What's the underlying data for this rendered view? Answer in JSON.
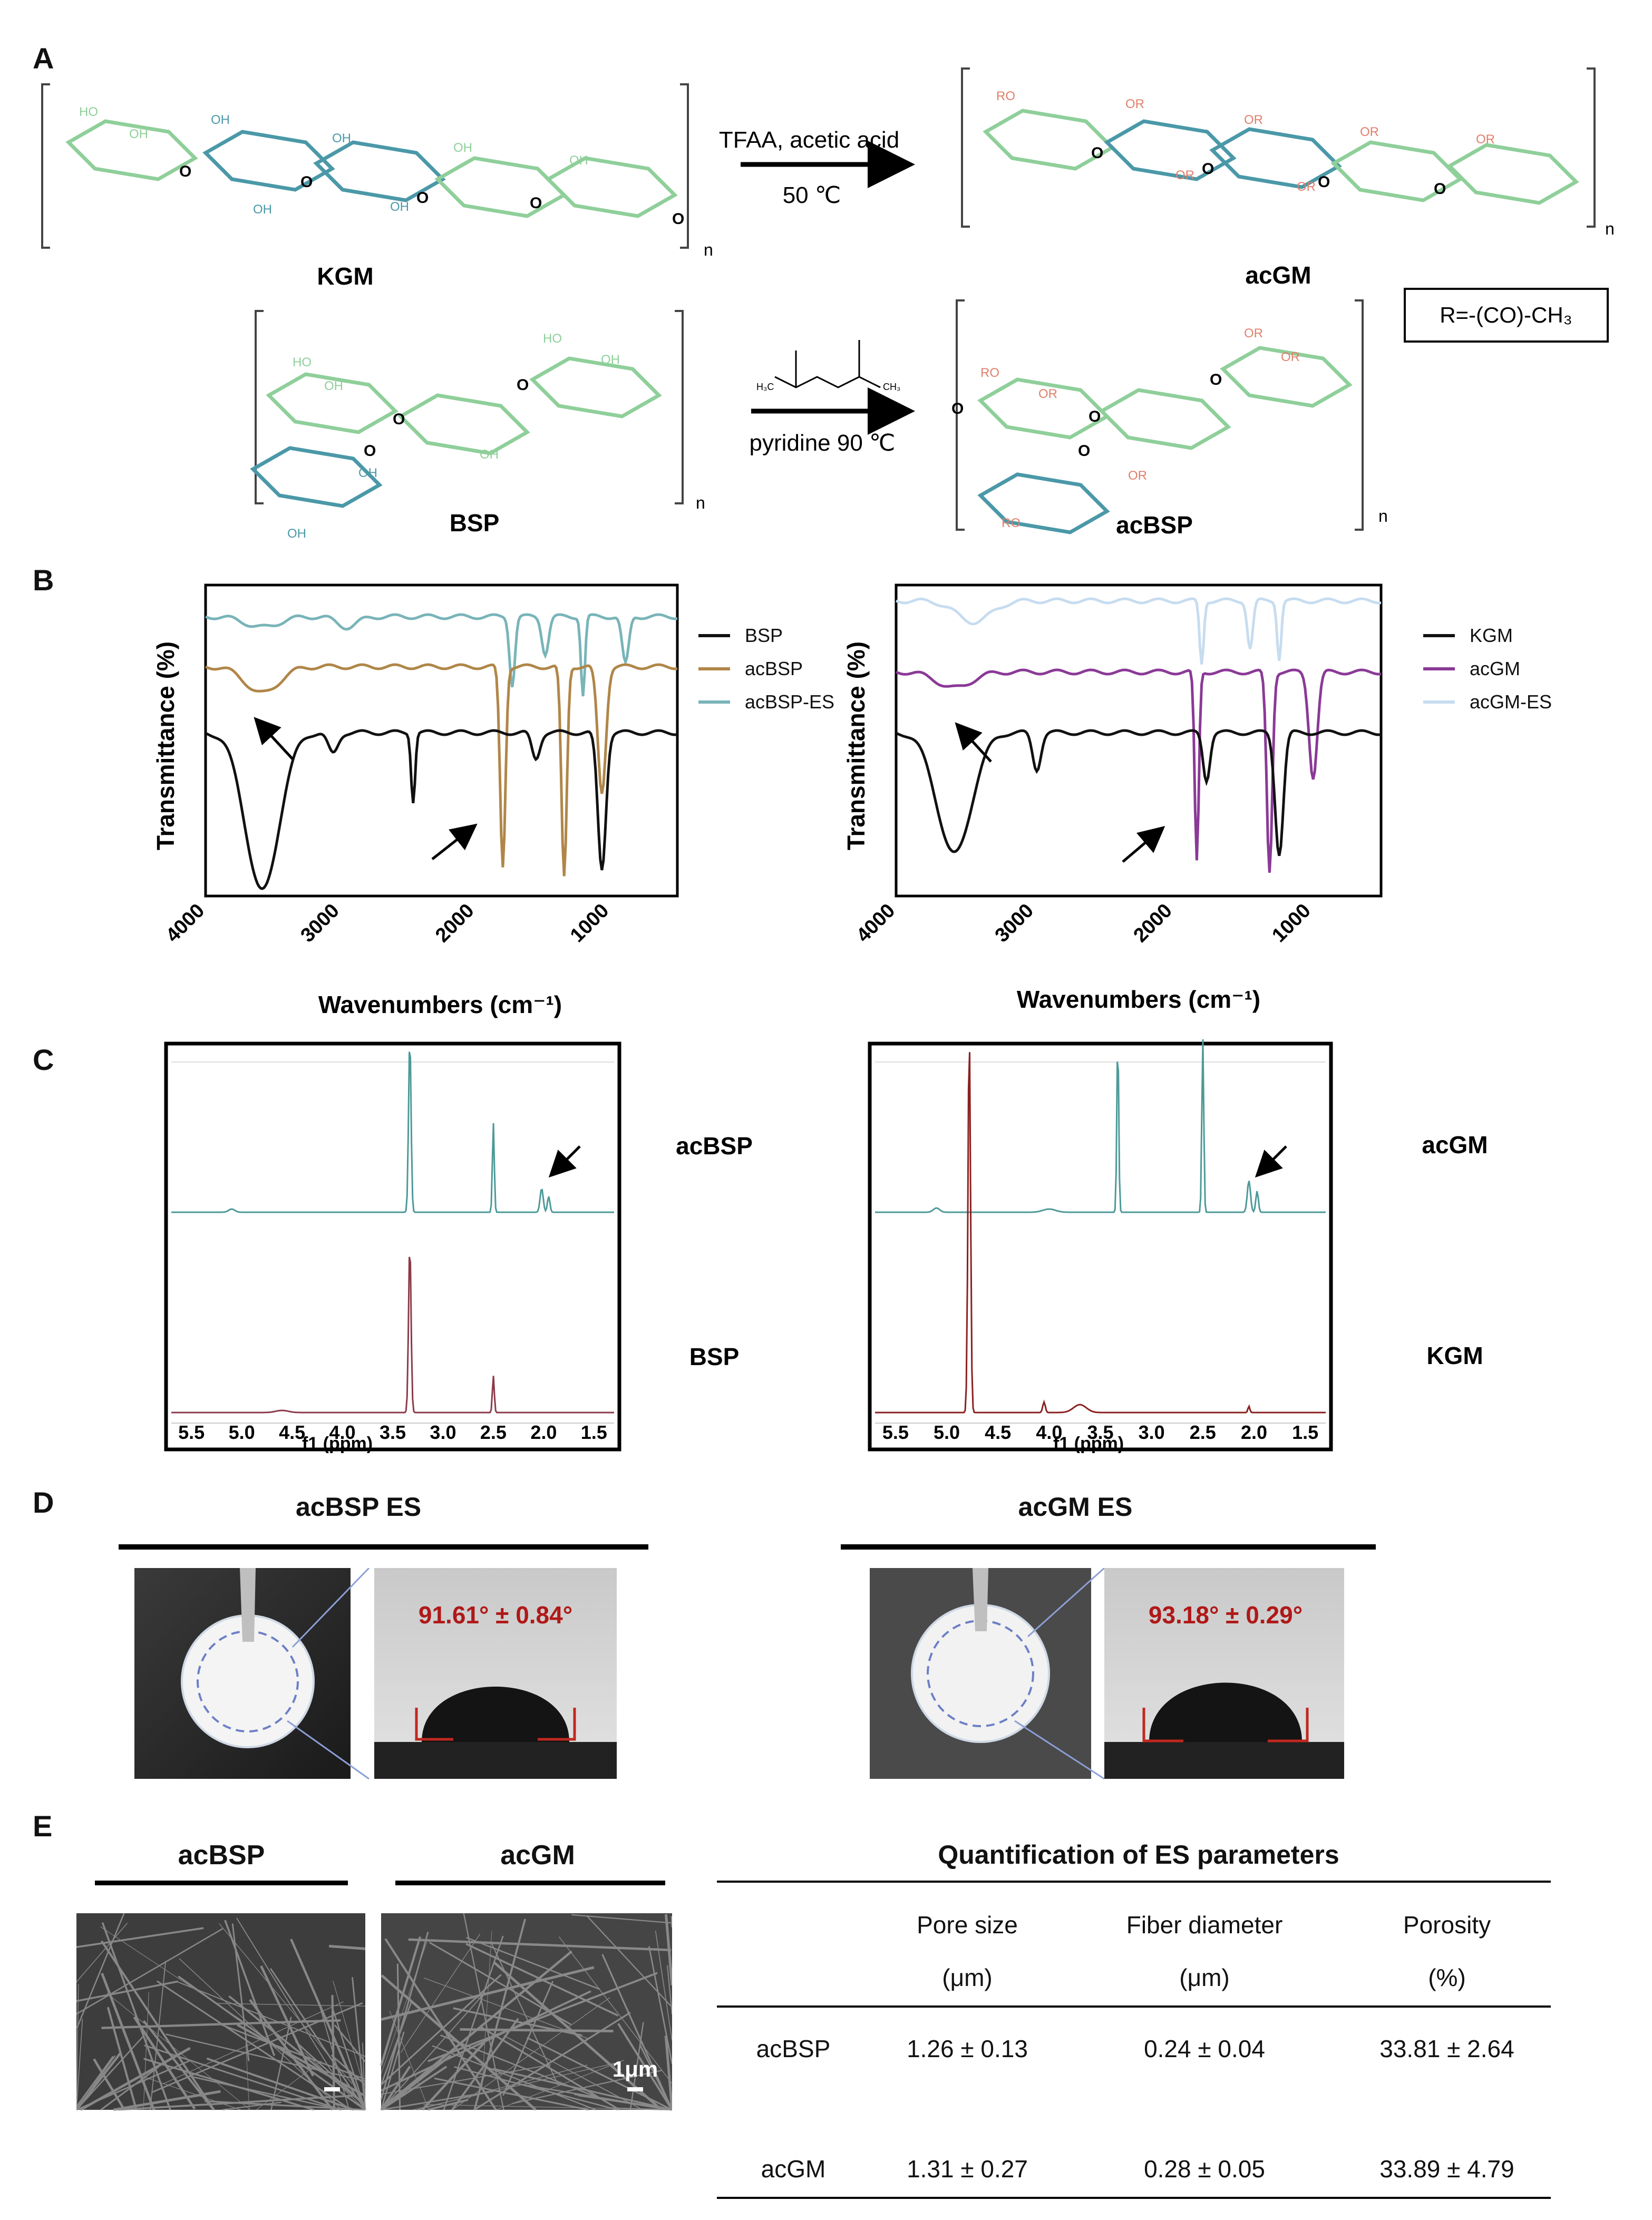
{
  "panels": {
    "a": "A",
    "b": "B",
    "c": "C",
    "d": "D",
    "e": "E"
  },
  "panel_a": {
    "reaction1_conditions_line1": "TFAA, acetic acid",
    "reaction1_conditions_line2": "50 ℃",
    "reaction2_conditions": "pyridine 90 ℃",
    "labels": {
      "kgm": "KGM",
      "acgm": "acGM",
      "bsp": "BSP",
      "acbsp": "acBSP"
    },
    "repeat_n": "n",
    "r_group": "R=-(CO)-CH₃",
    "hydroxyl": "OH",
    "hydroxyl_alt": "HO",
    "acetyl_ester": "OR",
    "acetyl_ester_alt": "RO",
    "glyco_o": "O",
    "anhydride_ch3": "H₃C",
    "anhydride_ch3_r": "CH₃"
  },
  "panel_b": {
    "ylabel": "Transmittance (%)",
    "xlabel": "Wavenumbers (cm⁻¹)",
    "ticks": [
      "4000",
      "3000",
      "2000",
      "1000"
    ],
    "legend_left": [
      {
        "name": "BSP",
        "color": "#111111"
      },
      {
        "name": "acBSP",
        "color": "#b08648"
      },
      {
        "name": "acBSP-ES",
        "color": "#78b4b8"
      }
    ],
    "legend_right": [
      {
        "name": "KGM",
        "color": "#111111"
      },
      {
        "name": "acGM",
        "color": "#8a3a96"
      },
      {
        "name": "acGM-ES",
        "color": "#c7dcef"
      }
    ]
  },
  "panel_c": {
    "xlabel": "f1 (ppm)",
    "ticks": [
      "5.5",
      "5.0",
      "4.5",
      "4.0",
      "3.5",
      "3.0",
      "2.5",
      "2.0",
      "1.5"
    ],
    "left_labels": {
      "top": "acBSP",
      "bottom": "BSP"
    },
    "right_labels": {
      "top": "acGM",
      "bottom": "KGM"
    }
  },
  "panel_d": {
    "left_title": "acBSP ES",
    "right_title": "acGM ES",
    "left_angle": "91.61° ± 0.84°",
    "right_angle": "93.18° ± 0.29°"
  },
  "panel_e": {
    "sem_left_title": "acBSP",
    "sem_right_title": "acGM",
    "scale_bar": "1μm",
    "table_title": "Quantification of ES parameters",
    "headers": [
      {
        "name": "Pore size",
        "unit": "(μm)"
      },
      {
        "name": "Fiber diameter",
        "unit": "(μm)"
      },
      {
        "name": "Porosity",
        "unit": "(%)"
      }
    ],
    "rows": [
      {
        "label": "acBSP",
        "values": [
          "1.26 ± 0.13",
          "0.24 ± 0.04",
          "33.81 ± 2.64"
        ]
      },
      {
        "label": "acGM",
        "values": [
          "1.31 ± 0.27",
          "0.28 ± 0.05",
          "33.89 ± 4.79"
        ]
      }
    ]
  }
}
